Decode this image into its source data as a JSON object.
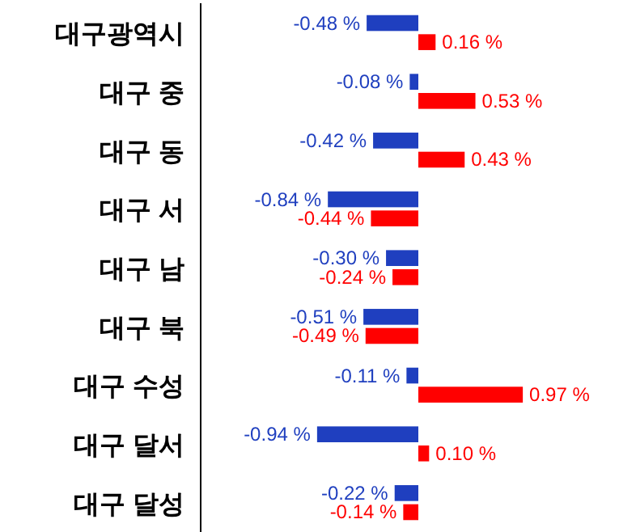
{
  "chart_data": {
    "type": "bar",
    "orientation": "horizontal",
    "categories": [
      "대구광역시",
      "대구 중",
      "대구 동",
      "대구 서",
      "대구 남",
      "대구 북",
      "대구 수성",
      "대구 달서",
      "대구 달성"
    ],
    "series": [
      {
        "color": "#1f3fbf",
        "values": [
          -0.48,
          -0.08,
          -0.42,
          -0.84,
          -0.3,
          -0.51,
          -0.11,
          -0.94,
          -0.22
        ],
        "value_labels": [
          "-0.48 %",
          "-0.08 %",
          "-0.42 %",
          "-0.84 %",
          "-0.30 %",
          "-0.51 %",
          "-0.11 %",
          "-0.94 %",
          "-0.22 %"
        ]
      },
      {
        "color": "#ff0000",
        "values": [
          0.16,
          0.53,
          0.43,
          -0.44,
          -0.24,
          -0.49,
          0.97,
          0.1,
          -0.14
        ],
        "value_labels": [
          "0.16 %",
          "0.53 %",
          "0.43 %",
          "-0.44 %",
          "-0.24 %",
          "-0.49 %",
          "0.97 %",
          "0.10 %",
          "-0.14 %"
        ]
      }
    ]
  }
}
